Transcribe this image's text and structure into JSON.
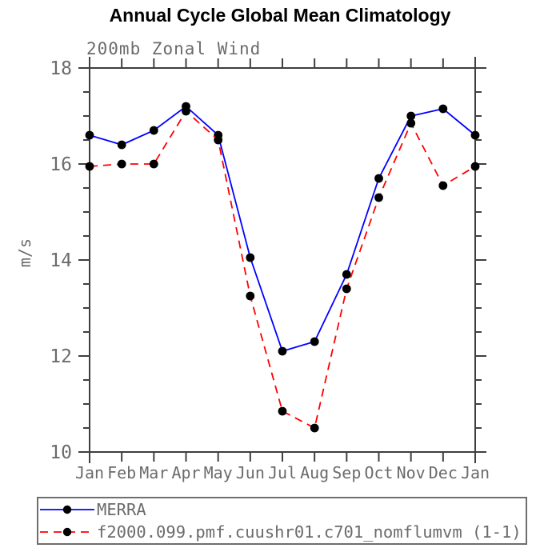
{
  "chart_data": {
    "type": "line",
    "title": "Annual Cycle Global Mean Climatology",
    "subtitle": "200mb Zonal Wind",
    "xlabel": "",
    "ylabel": "m/s",
    "ylim": [
      10,
      18
    ],
    "ytick_major": [
      10,
      12,
      14,
      16,
      18
    ],
    "ytick_minor_step": 0.5,
    "grid": false,
    "legend_position": "bottom",
    "categories": [
      "Jan",
      "Feb",
      "Mar",
      "Apr",
      "May",
      "Jun",
      "Jul",
      "Aug",
      "Sep",
      "Oct",
      "Nov",
      "Dec",
      "Jan"
    ],
    "series": [
      {
        "name": "MERRA",
        "color": "#0000ff",
        "style": "solid",
        "marker": "circle",
        "marker_color": "#000000",
        "values": [
          16.6,
          16.4,
          16.7,
          17.2,
          16.6,
          14.05,
          12.1,
          12.3,
          13.7,
          15.7,
          17.0,
          17.15,
          16.6
        ]
      },
      {
        "name": "f2000.099.pmf.cuushr01.c701_nomflumvm (1-1)",
        "color": "#ff0000",
        "style": "dashed",
        "marker": "circle",
        "marker_color": "#000000",
        "values": [
          15.95,
          16.0,
          16.0,
          17.1,
          16.5,
          13.25,
          10.85,
          10.5,
          13.4,
          15.3,
          16.85,
          15.55,
          15.95
        ]
      }
    ]
  },
  "colors": {
    "axis": "#3f3f3f",
    "tick_label": "#6b6b6b",
    "legend_border": "#6e6e6e"
  }
}
